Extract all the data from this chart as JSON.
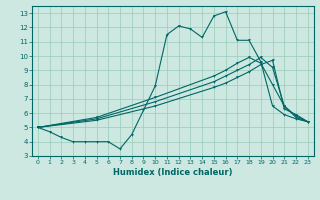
{
  "xlabel": "Humidex (Indice chaleur)",
  "bg_color": "#cce8e0",
  "grid_color": "#99ccbb",
  "line_color": "#006666",
  "xlim": [
    -0.5,
    23.5
  ],
  "ylim": [
    3,
    13.5
  ],
  "yticks": [
    3,
    4,
    5,
    6,
    7,
    8,
    9,
    10,
    11,
    12,
    13
  ],
  "xticks": [
    0,
    1,
    2,
    3,
    4,
    5,
    6,
    7,
    8,
    9,
    10,
    11,
    12,
    13,
    14,
    15,
    16,
    17,
    18,
    19,
    20,
    21,
    22,
    23
  ],
  "line1_x": [
    0,
    1,
    2,
    3,
    4,
    5,
    6,
    7,
    8,
    9,
    10,
    11,
    12,
    13,
    14,
    15,
    16,
    17,
    18,
    19,
    20,
    21,
    22,
    23
  ],
  "line1_y": [
    5.0,
    4.7,
    4.3,
    4.0,
    4.0,
    4.0,
    4.0,
    3.5,
    4.5,
    6.2,
    7.9,
    11.5,
    12.1,
    11.9,
    11.3,
    12.8,
    13.1,
    11.1,
    11.1,
    9.6,
    6.5,
    5.9,
    5.6,
    5.4
  ],
  "line2_x": [
    0,
    5,
    10,
    15,
    16,
    17,
    18,
    19,
    20,
    21,
    22,
    23
  ],
  "line2_y": [
    5.0,
    5.5,
    6.5,
    7.8,
    8.1,
    8.5,
    8.9,
    9.4,
    9.7,
    6.3,
    5.9,
    5.4
  ],
  "line3_x": [
    0,
    5,
    10,
    15,
    16,
    17,
    18,
    19,
    20,
    21,
    22,
    23
  ],
  "line3_y": [
    5.0,
    5.6,
    6.8,
    8.2,
    8.6,
    9.0,
    9.4,
    9.9,
    9.2,
    6.5,
    5.8,
    5.4
  ],
  "line4_x": [
    0,
    5,
    10,
    15,
    16,
    17,
    18,
    19,
    20,
    21,
    22,
    23
  ],
  "line4_y": [
    5.0,
    5.7,
    7.1,
    8.6,
    9.0,
    9.5,
    9.9,
    9.5,
    8.0,
    6.5,
    5.7,
    5.4
  ]
}
